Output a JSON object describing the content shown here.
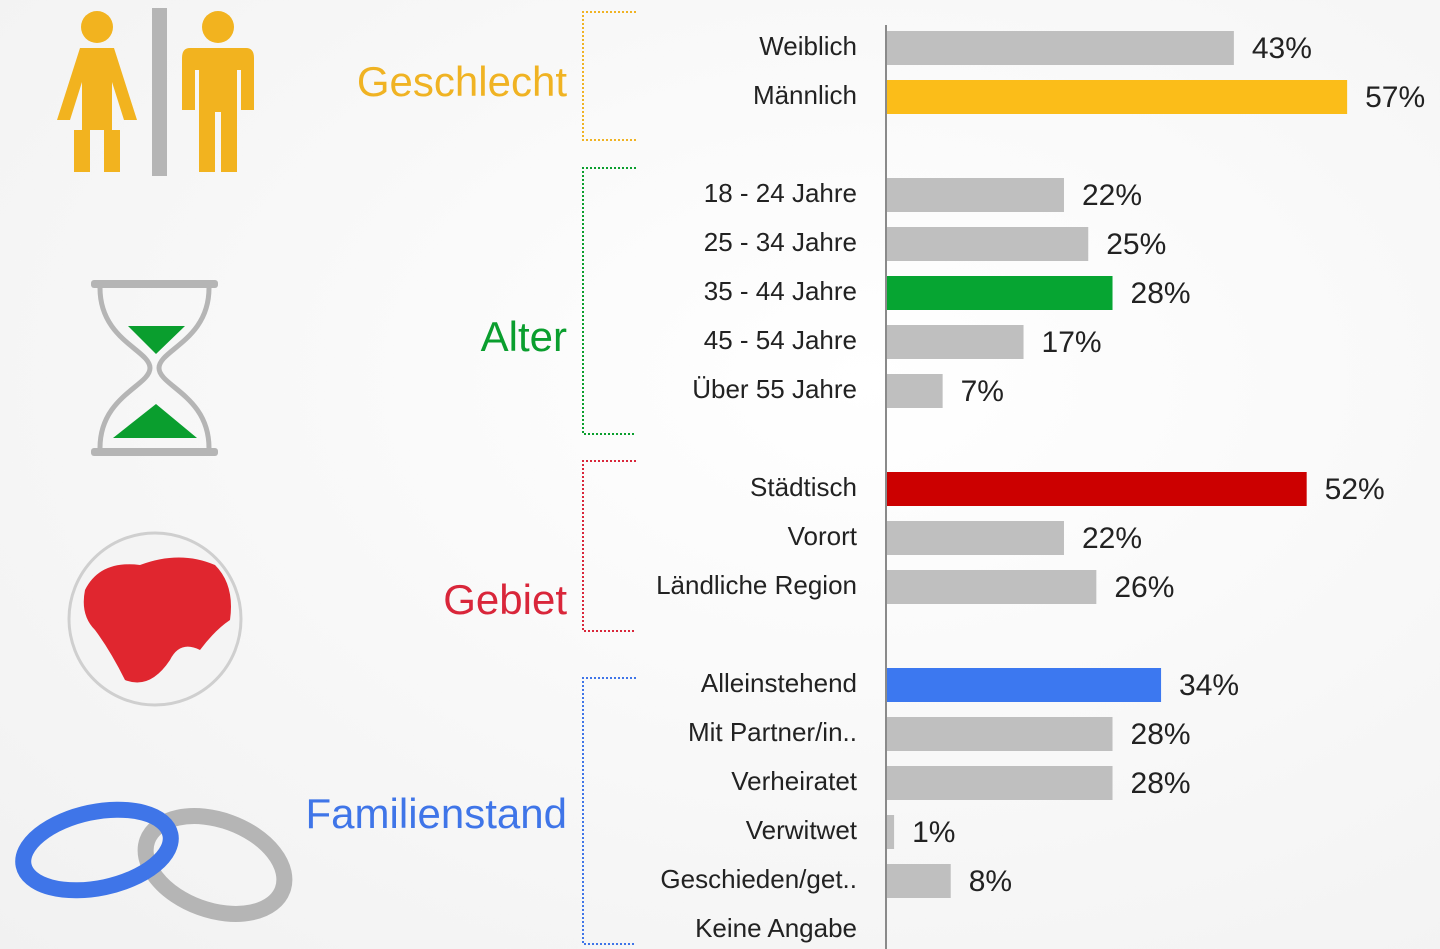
{
  "chart_data": {
    "type": "bar",
    "orientation": "horizontal",
    "xlim": [
      0,
      100
    ],
    "groups": [
      {
        "label": "Geschlecht",
        "color": "#f0b323",
        "categories": [
          "Weiblich",
          "Männlich"
        ],
        "values": [
          43,
          57
        ],
        "value_labels": [
          "43%",
          "57%"
        ],
        "colors": [
          "#bfbfbf",
          "#fbbd19"
        ]
      },
      {
        "label": "Alter",
        "color": "#0a9e2e",
        "categories": [
          "18 - 24 Jahre",
          "25 - 34 Jahre",
          "35 - 44 Jahre",
          "45 - 54 Jahre",
          "Über 55 Jahre"
        ],
        "values": [
          22,
          25,
          28,
          17,
          7
        ],
        "value_labels": [
          "22%",
          "25%",
          "28%",
          "17%",
          "7%"
        ],
        "colors": [
          "#bfbfbf",
          "#bfbfbf",
          "#06a532",
          "#bfbfbf",
          "#bfbfbf"
        ]
      },
      {
        "label": "Gebiet",
        "color": "#d9263a",
        "categories": [
          "Städtisch",
          "Vorort",
          "Ländliche Region"
        ],
        "values": [
          52,
          22,
          26
        ],
        "value_labels": [
          "52%",
          "22%",
          "26%"
        ],
        "colors": [
          "#cc0000",
          "#bfbfbf",
          "#bfbfbf"
        ]
      },
      {
        "label": "Familienstand",
        "color": "#3f75e8",
        "categories": [
          "Alleinstehend",
          "Mit Partner/in..",
          "Verheiratet",
          "Verwitwet",
          "Geschieden/get..",
          "Keine Angabe"
        ],
        "values": [
          34,
          28,
          28,
          1,
          8,
          null
        ],
        "value_labels": [
          "34%",
          "28%",
          "28%",
          "1%",
          "8%",
          null
        ],
        "colors": [
          "#3c78f0",
          "#bfbfbf",
          "#bfbfbf",
          "#bfbfbf",
          "#bfbfbf",
          "#bfbfbf"
        ]
      }
    ]
  }
}
